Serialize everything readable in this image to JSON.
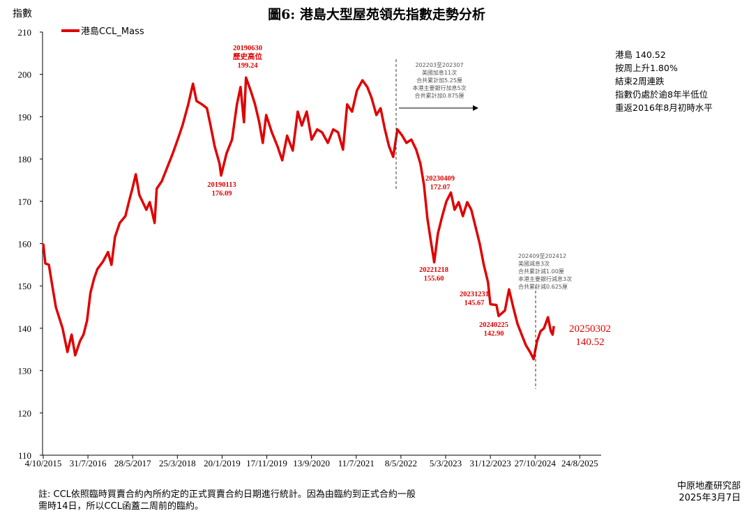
{
  "chart_data": {
    "type": "line",
    "title": "圖6: 港島大型屋苑領先指數走勢分析",
    "ylabel": "指數",
    "xlabel": "",
    "ylim": [
      110,
      210
    ],
    "yticks": [
      110,
      120,
      130,
      140,
      150,
      160,
      170,
      180,
      190,
      200,
      210
    ],
    "xlim": [
      "2015-10-04",
      "2025-08-24"
    ],
    "xtick_dates": [
      "2015-10-04",
      "2016-07-31",
      "2017-05-28",
      "2018-03-25",
      "2019-01-20",
      "2019-11-17",
      "2020-09-13",
      "2021-07-11",
      "2022-05-08",
      "2023-03-05",
      "2023-12-31",
      "2024-10-27",
      "2025-08-24"
    ],
    "xtick_labels": [
      "4/10/2015",
      "31/7/2016",
      "28/5/2017",
      "25/3/2018",
      "20/1/2019",
      "17/11/2019",
      "13/9/2020",
      "11/7/2021",
      "8/5/2022",
      "5/3/2023",
      "31/12/2023",
      "27/10/2024",
      "24/8/2025"
    ],
    "grid": false,
    "legend_position": "top-left",
    "series": [
      {
        "name": "港島CCL_Mass",
        "color": "#e00000",
        "points": [
          [
            "2015-10-04",
            160
          ],
          [
            "2015-10-18",
            155.3
          ],
          [
            "2015-11-11",
            155
          ],
          [
            "2015-12-04",
            150
          ],
          [
            "2015-12-28",
            145
          ],
          [
            "2016-02-11",
            140
          ],
          [
            "2016-03-15",
            134.4
          ],
          [
            "2016-04-12",
            138.5
          ],
          [
            "2016-05-06",
            133.6
          ],
          [
            "2016-06-08",
            137
          ],
          [
            "2016-07-01",
            138.5
          ],
          [
            "2016-07-25",
            141.8
          ],
          [
            "2016-08-17",
            148.4
          ],
          [
            "2016-09-10",
            151.7
          ],
          [
            "2016-10-03",
            154
          ],
          [
            "2016-11-10",
            155.8
          ],
          [
            "2016-12-13",
            158
          ],
          [
            "2017-01-05",
            155
          ],
          [
            "2017-01-29",
            161.6
          ],
          [
            "2017-03-02",
            164.9
          ],
          [
            "2017-04-09",
            166.5
          ],
          [
            "2017-05-02",
            169.8
          ],
          [
            "2017-05-26",
            173
          ],
          [
            "2017-06-18",
            176.4
          ],
          [
            "2017-07-12",
            171.5
          ],
          [
            "2017-08-04",
            169.8
          ],
          [
            "2017-08-28",
            168
          ],
          [
            "2017-09-20",
            169.8
          ],
          [
            "2017-10-23",
            164.9
          ],
          [
            "2017-11-06",
            173
          ],
          [
            "2017-12-09",
            174.7
          ],
          [
            "2018-01-16",
            178
          ],
          [
            "2018-02-22",
            181.3
          ],
          [
            "2018-03-27",
            184.6
          ],
          [
            "2018-04-29",
            188
          ],
          [
            "2018-06-06",
            192.9
          ],
          [
            "2018-07-08",
            197.8
          ],
          [
            "2018-08-01",
            193.7
          ],
          [
            "2018-09-07",
            192.9
          ],
          [
            "2018-10-10",
            192
          ],
          [
            "2018-11-03",
            188
          ],
          [
            "2018-12-01",
            183
          ],
          [
            "2019-01-03",
            178.9
          ],
          [
            "2019-01-13",
            176.09
          ],
          [
            "2019-02-19",
            181.3
          ],
          [
            "2019-03-28",
            184.6
          ],
          [
            "2019-04-30",
            192.9
          ],
          [
            "2019-05-24",
            197
          ],
          [
            "2019-06-16",
            188.7
          ],
          [
            "2019-06-30",
            199.24
          ],
          [
            "2019-08-02",
            196
          ],
          [
            "2019-08-30",
            192.9
          ],
          [
            "2019-09-27",
            188.7
          ],
          [
            "2019-10-21",
            183.8
          ],
          [
            "2019-11-13",
            190.4
          ],
          [
            "2019-12-21",
            186.3
          ],
          [
            "2020-01-28",
            183
          ],
          [
            "2020-02-29",
            179.7
          ],
          [
            "2020-04-02",
            185.5
          ],
          [
            "2020-05-10",
            182
          ],
          [
            "2020-06-12",
            191.2
          ],
          [
            "2020-07-10",
            187.9
          ],
          [
            "2020-08-12",
            191.2
          ],
          [
            "2020-09-14",
            184.6
          ],
          [
            "2020-10-21",
            187
          ],
          [
            "2020-11-23",
            186.3
          ],
          [
            "2021-01-01",
            183.8
          ],
          [
            "2021-02-06",
            187
          ],
          [
            "2021-03-11",
            186.3
          ],
          [
            "2021-04-13",
            182.2
          ],
          [
            "2021-05-11",
            192.9
          ],
          [
            "2021-06-13",
            191.2
          ],
          [
            "2021-07-16",
            196.2
          ],
          [
            "2021-08-22",
            198.6
          ],
          [
            "2021-09-24",
            197
          ],
          [
            "2021-10-22",
            194.5
          ],
          [
            "2021-11-24",
            190.4
          ],
          [
            "2021-12-22",
            192
          ],
          [
            "2022-01-20",
            187
          ],
          [
            "2022-02-17",
            183
          ],
          [
            "2022-03-17",
            180.5
          ],
          [
            "2022-04-14",
            187
          ],
          [
            "2022-05-17",
            185.5
          ],
          [
            "2022-06-14",
            183.8
          ],
          [
            "2022-07-17",
            184.6
          ],
          [
            "2022-08-19",
            182.2
          ],
          [
            "2022-09-16",
            178.9
          ],
          [
            "2022-10-10",
            173.9
          ],
          [
            "2022-11-02",
            166
          ],
          [
            "2022-11-25",
            160.7
          ],
          [
            "2022-12-18",
            155.6
          ],
          [
            "2023-01-12",
            162.4
          ],
          [
            "2023-02-10",
            166.5
          ],
          [
            "2023-03-10",
            170
          ],
          [
            "2023-04-09",
            172.07
          ],
          [
            "2023-05-04",
            168
          ],
          [
            "2023-06-01",
            169.8
          ],
          [
            "2023-06-29",
            166.5
          ],
          [
            "2023-07-28",
            169.8
          ],
          [
            "2023-08-25",
            168
          ],
          [
            "2023-09-22",
            164
          ],
          [
            "2023-10-20",
            160
          ],
          [
            "2023-11-17",
            155
          ],
          [
            "2023-12-15",
            150.9
          ],
          [
            "2023-12-31",
            145.67
          ],
          [
            "2024-02-10",
            145.5
          ],
          [
            "2024-02-25",
            142.9
          ],
          [
            "2024-04-07",
            144.2
          ],
          [
            "2024-05-05",
            149.2
          ],
          [
            "2024-06-02",
            145
          ],
          [
            "2024-07-01",
            141
          ],
          [
            "2024-07-29",
            138.5
          ],
          [
            "2024-08-26",
            136
          ],
          [
            "2024-09-23",
            134.4
          ],
          [
            "2024-10-17",
            132.7
          ],
          [
            "2024-11-09",
            136.9
          ],
          [
            "2024-12-03",
            139.3
          ],
          [
            "2024-12-26",
            140
          ],
          [
            "2025-01-22",
            142.6
          ],
          [
            "2025-02-10",
            139.3
          ],
          [
            "2025-02-22",
            138.5
          ],
          [
            "2025-03-02",
            140.52
          ]
        ]
      }
    ],
    "annotations": [
      {
        "date": "2019-06-30",
        "lines": [
          "20190630",
          "歷史高位",
          "199.24"
        ]
      },
      {
        "date": "2019-01-13",
        "lines": [
          "20190113",
          "176.09"
        ]
      },
      {
        "date": "2023-04-09",
        "lines": [
          "20230409",
          "172.07"
        ]
      },
      {
        "date": "2022-12-18",
        "lines": [
          "20221218",
          "155.60"
        ]
      },
      {
        "date": "2023-12-31",
        "lines": [
          "20231231",
          "145.67"
        ]
      },
      {
        "date": "2024-02-25",
        "lines": [
          "20240225",
          "142.90"
        ]
      },
      {
        "date": "2025-03-02",
        "lines": [
          "20250302",
          "140.52"
        ]
      }
    ],
    "notes": [
      {
        "lines": [
          "202203至202307",
          "美國加息11次",
          "合共累計加5.25厘",
          "本港主要銀行加息5次",
          "合共累計加0.875厘"
        ]
      },
      {
        "lines": [
          "202409至202412",
          "美國減息3次",
          "合共累計減1.00厘",
          "本港主要銀行減息3次",
          "合共累計減0.625厘"
        ]
      }
    ]
  },
  "summary": [
    "港島 140.52",
    "按周上升1.80%",
    "結束2周連跌",
    "指數仍處於逾8年半低位",
    "重返2016年8月初時水平"
  ],
  "footnote": [
    "註: CCL依照臨時買賣合約內所約定的正式買賣合約日期進行統計。因為由臨約到正式合約一般",
    "需時14日，所以CCL函蓋二周前的臨約。"
  ],
  "source": [
    "中原地產研究部",
    "2025年3月7日"
  ]
}
